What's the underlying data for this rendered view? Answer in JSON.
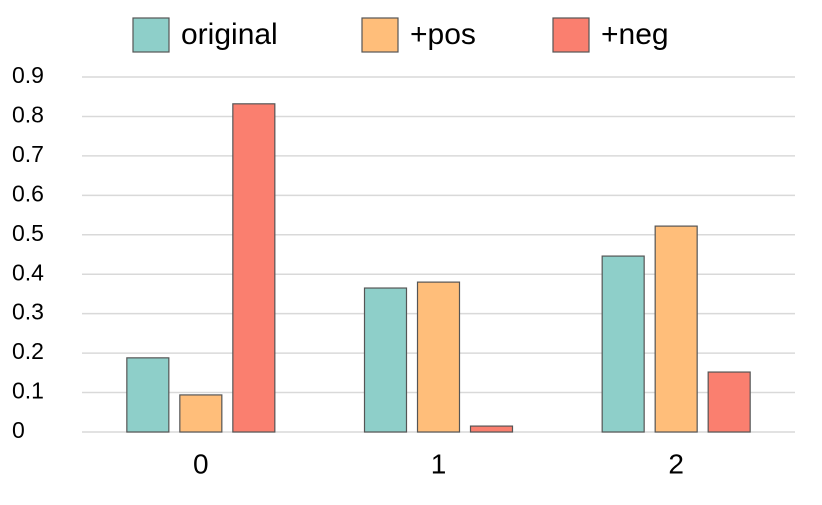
{
  "chart_data": {
    "type": "bar",
    "categories": [
      "0",
      "1",
      "2"
    ],
    "series": [
      {
        "name": "original",
        "color": "#8ecfc9",
        "values": [
          0.188,
          0.365,
          0.446
        ]
      },
      {
        "name": "+pos",
        "color": "#ffbe7a",
        "values": [
          0.094,
          0.38,
          0.522
        ]
      },
      {
        "name": "+neg",
        "color": "#fa7f6f",
        "values": [
          0.832,
          0.015,
          0.152
        ]
      }
    ],
    "ylim": [
      0,
      0.9
    ],
    "yticks": [
      0,
      0.1,
      0.2,
      0.3,
      0.4,
      0.5,
      0.6,
      0.7,
      0.8,
      0.9
    ],
    "grid": true,
    "legend": "top"
  }
}
